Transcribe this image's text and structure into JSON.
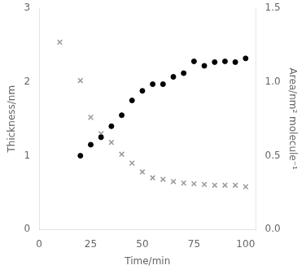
{
  "chart_data": {
    "type": "scatter",
    "xlabel": "Time/min",
    "ylabel": "Thickness/nm",
    "y2label": "Area/nm² molecule⁻¹",
    "xlim": [
      0,
      105
    ],
    "xticks": [
      0,
      25,
      50,
      75,
      100
    ],
    "ylim": [
      0,
      3.0
    ],
    "yticks": [
      0,
      1,
      2,
      3
    ],
    "y2lim": [
      0,
      1.5
    ],
    "y2ticks": [
      {
        "value": 0,
        "label": "0.0"
      },
      0.5,
      {
        "value": 1,
        "label": "1.0"
      },
      1.5
    ],
    "grid": false,
    "series": [
      {
        "x": [
          20,
          25,
          30,
          35,
          40,
          45,
          50,
          55,
          60,
          65,
          70,
          75,
          80,
          85,
          90,
          95,
          100
        ],
        "values": [
          1.0,
          1.15,
          1.25,
          1.4,
          1.55,
          1.75,
          1.88,
          1.97,
          1.97,
          2.07,
          2.12,
          2.28,
          2.22,
          2.27,
          2.28,
          2.27,
          2.32
        ],
        "color": "black",
        "marker": "circle"
      },
      {
        "x": [
          10,
          20,
          25,
          30,
          35,
          40,
          45,
          50,
          55,
          60,
          65,
          70,
          75,
          80,
          85,
          90,
          95,
          100
        ],
        "values": [
          1.27,
          1.01,
          0.76,
          0.65,
          0.59,
          0.51,
          0.45,
          0.39,
          0.35,
          0.34,
          0.325,
          0.315,
          0.31,
          0.305,
          0.3,
          0.3,
          0.3,
          0.29
        ],
        "color": "#999999",
        "marker": "x",
        "axis": "y2"
      }
    ]
  }
}
